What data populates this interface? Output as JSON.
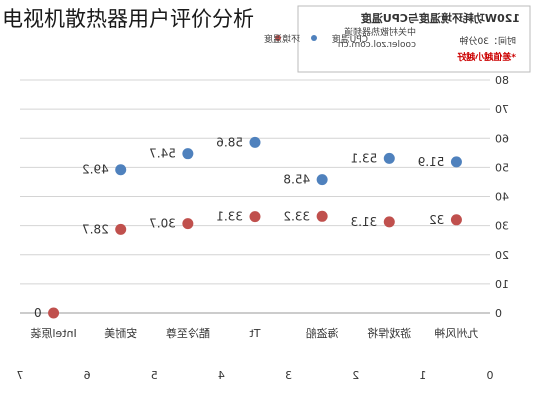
{
  "page_title": "电视机散热器用户评价分析",
  "chart_data": {
    "type": "scatter",
    "orientation": "mirrored (image flipped horizontally)",
    "title": "120W功耗环境温度与CPU温度",
    "source": "中关村散热器频道",
    "site": "cooler.zol.com.cn",
    "time_label": "时间：30分钟",
    "note": "*差值越小越好",
    "legend": [
      {
        "name": "CPU温度",
        "color": "#4f81bd"
      },
      {
        "name": "环境温度",
        "color": "#c0504d"
      }
    ],
    "ylim": [
      0,
      80
    ],
    "yticks": [
      0,
      10,
      20,
      30,
      40,
      50,
      60,
      70,
      80
    ],
    "xticks": [
      "0",
      "1",
      "2",
      "3",
      "4",
      "5",
      "6",
      "7"
    ],
    "categories": [
      "九州风神",
      "游戏悍将",
      "海盗船",
      "Tt",
      "酷冷至尊",
      "安耐美",
      "Intel原装"
    ],
    "series": [
      {
        "name": "CPU温度",
        "color": "#4f81bd",
        "values": [
          51.9,
          53.1,
          45.8,
          58.6,
          54.7,
          49.2,
          null
        ]
      },
      {
        "name": "环境温度",
        "color": "#c0504d",
        "values": [
          32,
          31.3,
          33.2,
          33.1,
          30.7,
          28.7,
          0
        ]
      }
    ],
    "grid": true,
    "legend_position": "top"
  }
}
